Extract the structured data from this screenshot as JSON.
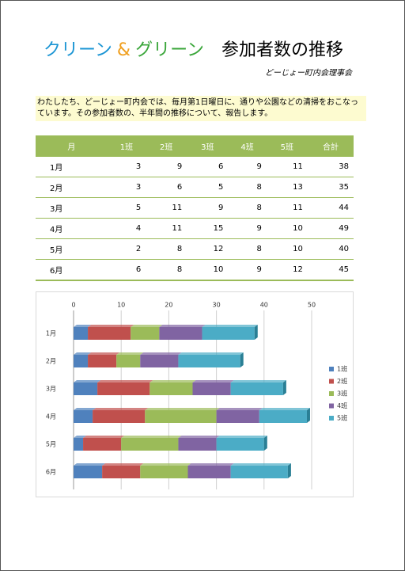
{
  "header": {
    "title_parts": [
      {
        "text": "クリーン",
        "color": "#1b95d4"
      },
      {
        "text": "&",
        "color": "#f0a020"
      },
      {
        "text": "グリーン",
        "color": "#3aa63a"
      },
      {
        "text": "参加者数の推移",
        "color": "#000000"
      }
    ],
    "subtitle": "どーじょー町内会理事会"
  },
  "intro": "わたしたち、どーじょー町内会では、毎月第1日曜日に、通りや公園などの清掃をおこなっています。その参加者数の、半年間の推移について、報告します。",
  "table": {
    "header": [
      "月",
      "1班",
      "2班",
      "3班",
      "4班",
      "5班",
      "合計"
    ],
    "rows": [
      [
        "1月",
        3,
        9,
        6,
        9,
        11,
        38
      ],
      [
        "2月",
        3,
        6,
        5,
        8,
        13,
        35
      ],
      [
        "3月",
        5,
        11,
        9,
        8,
        11,
        44
      ],
      [
        "4月",
        4,
        11,
        15,
        9,
        10,
        49
      ],
      [
        "5月",
        2,
        8,
        12,
        8,
        10,
        40
      ],
      [
        "6月",
        6,
        8,
        10,
        9,
        12,
        45
      ]
    ]
  },
  "chart_data": {
    "type": "bar",
    "orientation": "horizontal",
    "stacked": true,
    "categories": [
      "1月",
      "2月",
      "3月",
      "4月",
      "5月",
      "6月"
    ],
    "series": [
      {
        "name": "1班",
        "color": "#4f81bd",
        "values": [
          3,
          3,
          5,
          4,
          2,
          6
        ]
      },
      {
        "name": "2班",
        "color": "#c0504d",
        "values": [
          9,
          6,
          11,
          11,
          8,
          8
        ]
      },
      {
        "name": "3班",
        "color": "#9bbb59",
        "values": [
          6,
          5,
          9,
          15,
          12,
          10
        ]
      },
      {
        "name": "4班",
        "color": "#8064a2",
        "values": [
          9,
          8,
          8,
          9,
          8,
          9
        ]
      },
      {
        "name": "5班",
        "color": "#4bacc6",
        "values": [
          11,
          13,
          11,
          10,
          10,
          12
        ]
      }
    ],
    "xlim": [
      0,
      50
    ],
    "xticks": [
      0,
      10,
      20,
      30,
      40,
      50
    ],
    "grid": true,
    "legend": "right"
  }
}
